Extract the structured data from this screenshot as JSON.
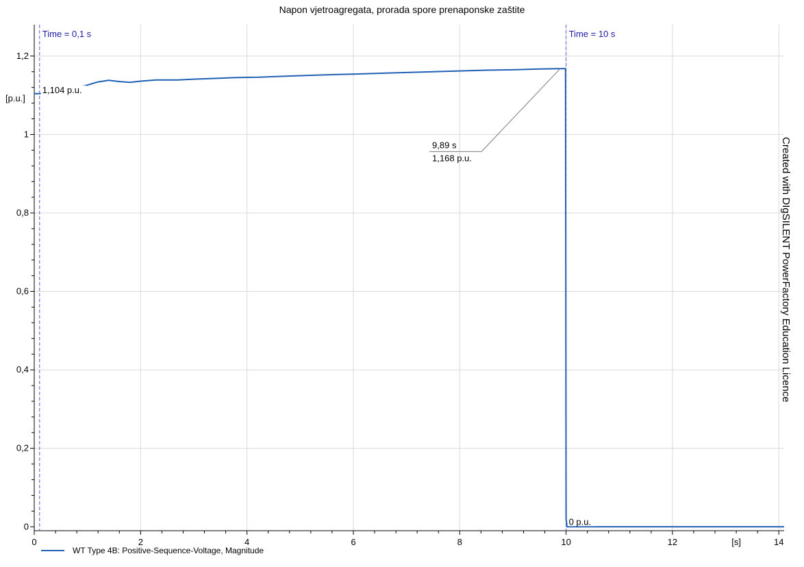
{
  "chart_data": {
    "type": "line",
    "title": "Napon vjetroagregata, prorada spore prenaponske zaštite",
    "xlabel": "[s]",
    "ylabel": "[p.u.]",
    "xlim": [
      0,
      14.1
    ],
    "ylim": [
      -0.01,
      1.28
    ],
    "xticks": [
      0,
      2,
      4,
      6,
      8,
      10,
      12,
      14
    ],
    "xtick_labels": [
      "0",
      "2",
      "4",
      "6",
      "8",
      "10",
      "12",
      "14"
    ],
    "yticks": [
      0,
      0.2,
      0.4,
      0.6,
      0.8,
      1.0,
      1.2
    ],
    "ytick_labels": [
      "0",
      "0,2",
      "0,4",
      "0,6",
      "0,8",
      "1",
      "1,2"
    ],
    "grid": true,
    "series": [
      {
        "name": "WT Type 4B: Positive-Sequence-Voltage, Magnitude",
        "color": "#1f5fb4",
        "x": [
          0,
          0.1,
          0.3,
          0.6,
          1.0,
          1.2,
          1.4,
          1.6,
          1.8,
          2.0,
          2.3,
          2.7,
          3.0,
          3.4,
          3.8,
          4.2,
          4.6,
          5.0,
          5.5,
          6.0,
          6.5,
          7.0,
          7.5,
          8.0,
          8.5,
          9.0,
          9.5,
          9.89,
          9.99,
          10.0,
          10.02,
          11.0,
          12.0,
          13.0,
          14.0,
          14.1
        ],
        "y": [
          1.104,
          1.104,
          1.108,
          1.114,
          1.126,
          1.134,
          1.138,
          1.135,
          1.133,
          1.136,
          1.139,
          1.139,
          1.141,
          1.143,
          1.145,
          1.146,
          1.148,
          1.15,
          1.152,
          1.154,
          1.156,
          1.158,
          1.16,
          1.162,
          1.164,
          1.165,
          1.167,
          1.168,
          1.168,
          0.02,
          0,
          0,
          0,
          0,
          0,
          0
        ]
      }
    ],
    "markers": [
      {
        "x": 0.1,
        "label": "Time = 0,1 s"
      },
      {
        "x": 10,
        "label": "Time = 10 s"
      }
    ],
    "annotations": [
      {
        "x": 0.1,
        "y": 1.104,
        "text": "1,104 p.u."
      },
      {
        "x": 10,
        "y": 0,
        "text": "0 p.u."
      },
      {
        "x": 9.89,
        "y": 1.168,
        "lines": [
          "9,89 s",
          "1,168 p.u."
        ]
      }
    ],
    "watermark": "Created with DIgSILENT PowerFactory Education Licence",
    "legend_position": "bottom-left"
  }
}
